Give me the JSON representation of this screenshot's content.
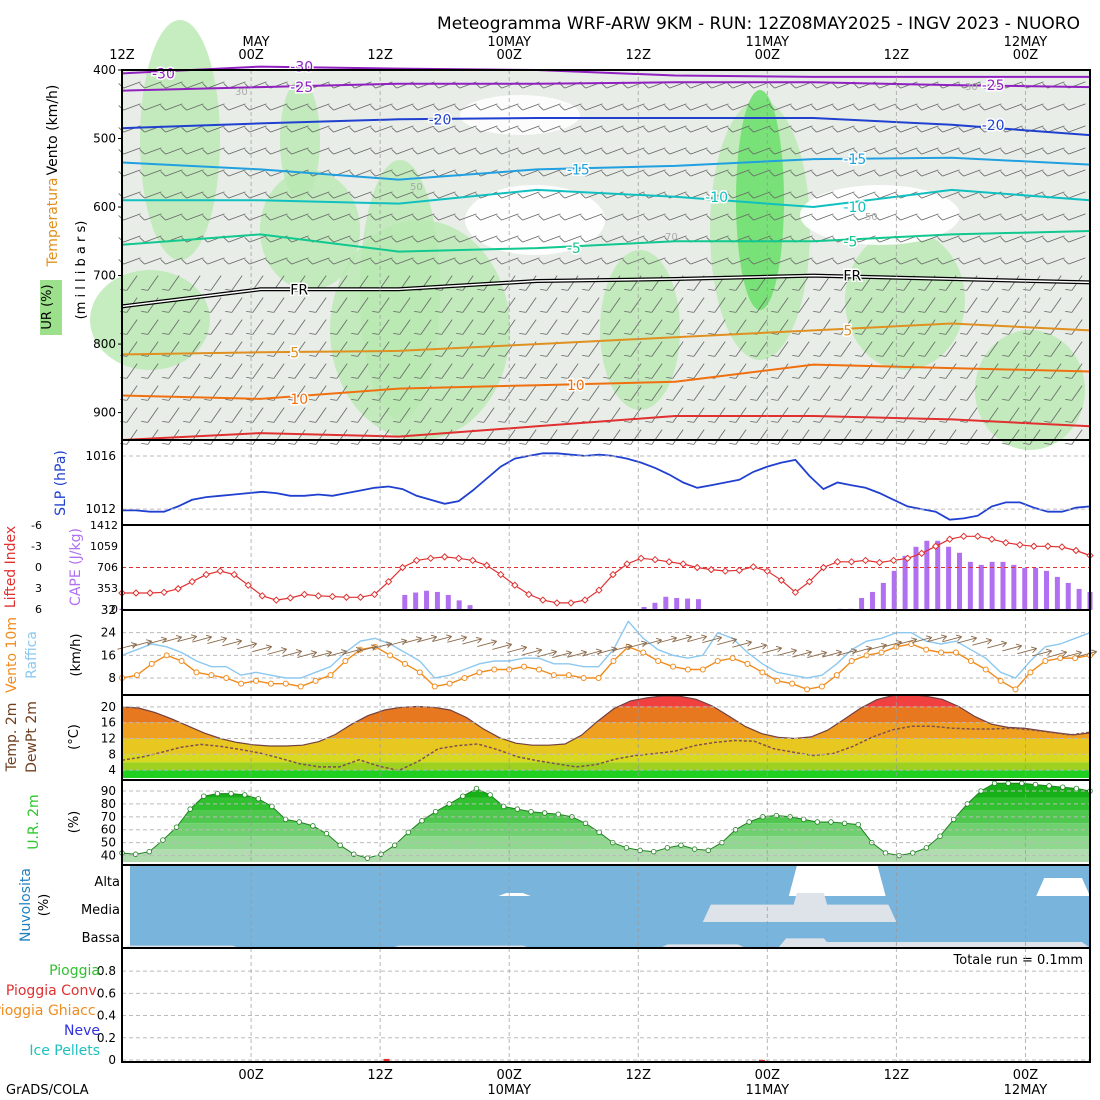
{
  "title": "Meteogramma WRF-ARW 9KM - RUN: 12Z08MAY2025 - INGV 2023 - NUORO",
  "footer": "GrADS/COLA",
  "time_axis": {
    "top_ticks": [
      {
        "t": 0,
        "top": "12Z",
        "bottom": ""
      },
      {
        "t": 12,
        "top": "00Z",
        "bottom": "MAY"
      },
      {
        "t": 24,
        "top": "12Z",
        "bottom": ""
      },
      {
        "t": 36,
        "top": "00Z",
        "bottom": "10MAY"
      },
      {
        "t": 48,
        "top": "12Z",
        "bottom": ""
      },
      {
        "t": 60,
        "top": "00Z",
        "bottom": "11MAY"
      },
      {
        "t": 72,
        "top": "12Z",
        "bottom": ""
      },
      {
        "t": 84,
        "top": "00Z",
        "bottom": "12MAY"
      }
    ],
    "bottom_ticks": [
      {
        "t": 12,
        "top": "00Z",
        "bottom": ""
      },
      {
        "t": 24,
        "top": "12Z",
        "bottom": ""
      },
      {
        "t": 36,
        "top": "00Z",
        "bottom": "10MAY"
      },
      {
        "t": 48,
        "top": "12Z",
        "bottom": ""
      },
      {
        "t": 60,
        "top": "00Z",
        "bottom": "11MAY"
      },
      {
        "t": 72,
        "top": "12Z",
        "bottom": ""
      },
      {
        "t": 84,
        "top": "00Z",
        "bottom": "12MAY"
      }
    ]
  },
  "panels": {
    "upper": {
      "ylabels": [
        "Vento (km/h)",
        "Temperatura",
        "UR (%)",
        "(m i l l i b a r s)"
      ],
      "yticks": [
        400,
        500,
        600,
        700,
        800,
        900
      ],
      "isotherm_labels": [
        "-30",
        "-25",
        "-20",
        "-15",
        "-10",
        "-5",
        "FR",
        "5",
        "10"
      ],
      "rh_labels": [
        "30",
        "50",
        "70"
      ]
    },
    "slp": {
      "ylabel": "SLP (hPa)",
      "yticks": [
        1012,
        1016
      ]
    },
    "cape": {
      "ylabel_left": "Lifted Index",
      "ylabel_right": "CAPE (J/kg)",
      "li_ticks": [
        "-6",
        "-3",
        "0",
        "3",
        "6"
      ],
      "cape_ticks": [
        "1412",
        "1059",
        "706",
        "353",
        "0"
      ]
    },
    "wind10": {
      "ylabel_a": "Vento 10m",
      "ylabel_b": "Raffica",
      "unit": "(km/h)",
      "yticks": [
        8,
        16,
        24,
        32
      ]
    },
    "temp2m": {
      "ylabel_a": "Temp. 2m",
      "ylabel_b": "DewPt 2m",
      "unit": "(°C)",
      "yticks": [
        4,
        8,
        12,
        16,
        20
      ]
    },
    "rh2m": {
      "ylabel": "U.R. 2m",
      "unit": "(%)",
      "yticks": [
        40,
        50,
        60,
        70,
        80,
        90
      ]
    },
    "clouds": {
      "ylabel": "Nuvolosita",
      "unit": "(%)",
      "levels": [
        "Alta",
        "Media",
        "Bassa"
      ]
    },
    "precip": {
      "labels": [
        "Pioggia",
        "Pioggia Conv.",
        "Pioggia Ghiacc.",
        "Neve",
        "Ice Pellets"
      ],
      "yticks": [
        "0",
        "0.2",
        "0.4",
        "0.6",
        "0.8"
      ],
      "total": "Totale run = 0.1mm"
    }
  },
  "colors": {
    "slp": "#2040d0",
    "li": "#e03030",
    "cape": "#b070f0",
    "wind": "#f08c1e",
    "gust": "#8cc8f0",
    "dew": "#805050",
    "rh": "#2cc82c",
    "cloud_bg": "#78b4dc",
    "fr": "#000000"
  },
  "chart_data": {
    "type": "line",
    "x": {
      "unit": "hours since 12Z08MAY2025",
      "range": [
        0,
        90
      ],
      "step": 1.5
    },
    "slp_hpa": [
      1011.9,
      1011.9,
      1011.8,
      1011.8,
      1012.2,
      1012.7,
      1012.9,
      1013.0,
      1013.1,
      1013.2,
      1013.3,
      1013.2,
      1013.0,
      1013.0,
      1013.1,
      1013.0,
      1013.2,
      1013.4,
      1013.6,
      1013.7,
      1013.5,
      1013.0,
      1012.7,
      1012.4,
      1012.6,
      1013.4,
      1014.3,
      1015.2,
      1015.8,
      1016.0,
      1016.2,
      1016.2,
      1016.1,
      1016.0,
      1016.1,
      1016.0,
      1015.8,
      1015.5,
      1015.1,
      1014.6,
      1014.0,
      1013.6,
      1013.8,
      1014.0,
      1014.2,
      1014.8,
      1015.2,
      1015.5,
      1015.7,
      1014.5,
      1013.5,
      1014.0,
      1013.8,
      1013.6,
      1013.2,
      1012.7,
      1012.2,
      1012.0,
      1011.8,
      1011.2,
      1011.3,
      1011.5,
      1012.2,
      1012.5,
      1012.5,
      1012.1,
      1011.8,
      1011.8,
      1012.1,
      1012.2
    ],
    "lifted_index": [
      3.6,
      3.6,
      3.6,
      3.5,
      3.0,
      2.0,
      1.0,
      0.5,
      1.0,
      2.5,
      4.0,
      4.6,
      4.3,
      3.8,
      4.0,
      4.1,
      4.2,
      4.2,
      3.8,
      2.0,
      0.0,
      -1.0,
      -1.3,
      -1.5,
      -1.3,
      -1.0,
      -0.3,
      1.0,
      2.5,
      3.8,
      4.6,
      5.0,
      5.0,
      4.6,
      3.2,
      1.0,
      -0.5,
      -1.3,
      -1.1,
      -0.8,
      -0.5,
      0.0,
      0.3,
      0.5,
      0.4,
      -0.1,
      0.5,
      1.8,
      3.5,
      2.0,
      0.0,
      -0.8,
      -0.8,
      -1.0,
      -0.7,
      -1.0,
      -1.3,
      -2.0,
      -3.0,
      -4.0,
      -4.4,
      -4.4,
      -4.0,
      -3.5,
      -3.2,
      -3.0,
      -3.0,
      -2.9,
      -2.4,
      -1.7
    ],
    "cape_jkg": [
      20,
      0,
      0,
      0,
      0,
      0,
      0,
      10,
      10,
      0,
      0,
      0,
      0,
      0,
      0,
      0,
      0,
      0,
      0,
      0,
      0,
      0,
      0,
      0,
      0,
      0,
      250,
      290,
      320,
      300,
      250,
      160,
      80,
      0,
      0,
      0,
      0,
      0,
      0,
      0,
      0,
      0,
      0,
      0,
      0,
      0,
      0,
      0,
      50,
      120,
      220,
      200,
      190,
      180,
      0,
      0,
      0,
      0,
      0,
      0,
      0,
      0,
      0,
      0,
      0,
      0,
      0,
      0,
      0,
      0,
      0,
      0,
      0,
      0,
      0,
      0,
      0,
      0,
      0,
      0,
      0,
      0,
      0,
      0,
      0,
      0,
      0,
      0,
      0,
      0
    ],
    "cape_late": [
      20,
      20,
      200,
      300,
      450,
      650,
      900,
      1050,
      1150,
      1150,
      1050,
      950,
      800,
      750,
      800,
      800,
      750,
      700,
      700,
      650,
      550,
      450,
      350,
      300
    ],
    "wind10_kmh": [
      8,
      9,
      13,
      16,
      14,
      10,
      9,
      8,
      6,
      7,
      6,
      6,
      5,
      7,
      9,
      14,
      18,
      19,
      16,
      13,
      10,
      5,
      6,
      8,
      10,
      11,
      11,
      12,
      11,
      9,
      9,
      8,
      8,
      14,
      19,
      17,
      14,
      12,
      11,
      11,
      14,
      15,
      13,
      10,
      7,
      6,
      4,
      5,
      9,
      14,
      16,
      17,
      19,
      20,
      18,
      17,
      17,
      14,
      11,
      7,
      4,
      10,
      14,
      15,
      15,
      16
    ],
    "gust_kmh": [
      16,
      18,
      20,
      19,
      17,
      14,
      12,
      12,
      9,
      10,
      9,
      8,
      8,
      10,
      12,
      17,
      21,
      22,
      20,
      17,
      14,
      8,
      9,
      11,
      13,
      14,
      14,
      15,
      15,
      13,
      13,
      12,
      12,
      18,
      28,
      22,
      18,
      16,
      15,
      16,
      24,
      22,
      17,
      13,
      10,
      9,
      8,
      9,
      13,
      18,
      21,
      22,
      24,
      24,
      21,
      20,
      21,
      18,
      15,
      10,
      8,
      14,
      19,
      20,
      22,
      24
    ],
    "temp2m_c": [
      20.0,
      19.7,
      18.6,
      17.0,
      15.2,
      13.4,
      12.0,
      11.0,
      10.4,
      10.1,
      10.1,
      10.3,
      11.2,
      13.0,
      15.6,
      17.8,
      19.2,
      19.9,
      20.1,
      19.9,
      19.2,
      17.3,
      14.5,
      12.2,
      10.8,
      10.3,
      10.3,
      10.6,
      12.8,
      16.4,
      19.6,
      21.5,
      22.3,
      22.8,
      22.7,
      21.9,
      20.2,
      17.6,
      15.0,
      13.2,
      12.3,
      12.0,
      12.4,
      14.1,
      16.8,
      19.6,
      21.8,
      22.9,
      23.1,
      22.7,
      21.9,
      20.1,
      17.5,
      15.6,
      14.8,
      14.6,
      14.0,
      13.4,
      12.9,
      13.4
    ],
    "dewpt2m_c": [
      6.5,
      7.3,
      8.5,
      9.8,
      10.5,
      10.0,
      9.2,
      8.3,
      7.0,
      5.6,
      4.8,
      4.8,
      6.6,
      5.0,
      3.9,
      6.2,
      9.4,
      10.2,
      10.6,
      9.2,
      7.4,
      6.4,
      5.6,
      4.8,
      5.4,
      6.8,
      7.7,
      8.2,
      8.8,
      10.2,
      11.0,
      11.5,
      11.3,
      9.4,
      8.5,
      7.7,
      8.2,
      10.0,
      12.4,
      14.2,
      15.1,
      15.1,
      14.6,
      14.4,
      14.4,
      14.6,
      14.2,
      13.6,
      12.9,
      13.6
    ],
    "rh2m_pct": [
      42,
      41,
      43,
      52,
      62,
      76,
      86,
      88,
      88,
      87,
      84,
      78,
      68,
      66,
      63,
      57,
      48,
      41,
      38,
      41,
      48,
      58,
      67,
      74,
      80,
      86,
      92,
      87,
      78,
      76,
      74,
      73,
      72,
      70,
      65,
      58,
      50,
      46,
      44,
      43,
      46,
      48,
      45,
      44,
      50,
      60,
      66,
      70,
      71,
      70,
      68,
      66,
      66,
      65,
      64,
      50,
      42,
      40,
      42,
      46,
      55,
      68,
      80,
      90,
      96,
      96,
      96,
      95,
      94,
      93,
      92,
      90
    ],
    "clouds": {
      "high": [
        [
          62,
          71,
          100
        ],
        [
          35,
          38,
          10
        ],
        [
          85,
          90,
          60
        ]
      ],
      "mid": [
        [
          54,
          72,
          60
        ],
        [
          62,
          66,
          100
        ]
      ],
      "low": [
        [
          0,
          11,
          10
        ],
        [
          25,
          38,
          10
        ],
        [
          50,
          58,
          15
        ],
        [
          61,
          66,
          40
        ],
        [
          63,
          90,
          25
        ]
      ]
    },
    "precip_mm": [
      {
        "t": 24.6,
        "value": 0.1
      },
      {
        "t": 59.5,
        "value": 0.01
      }
    ]
  }
}
